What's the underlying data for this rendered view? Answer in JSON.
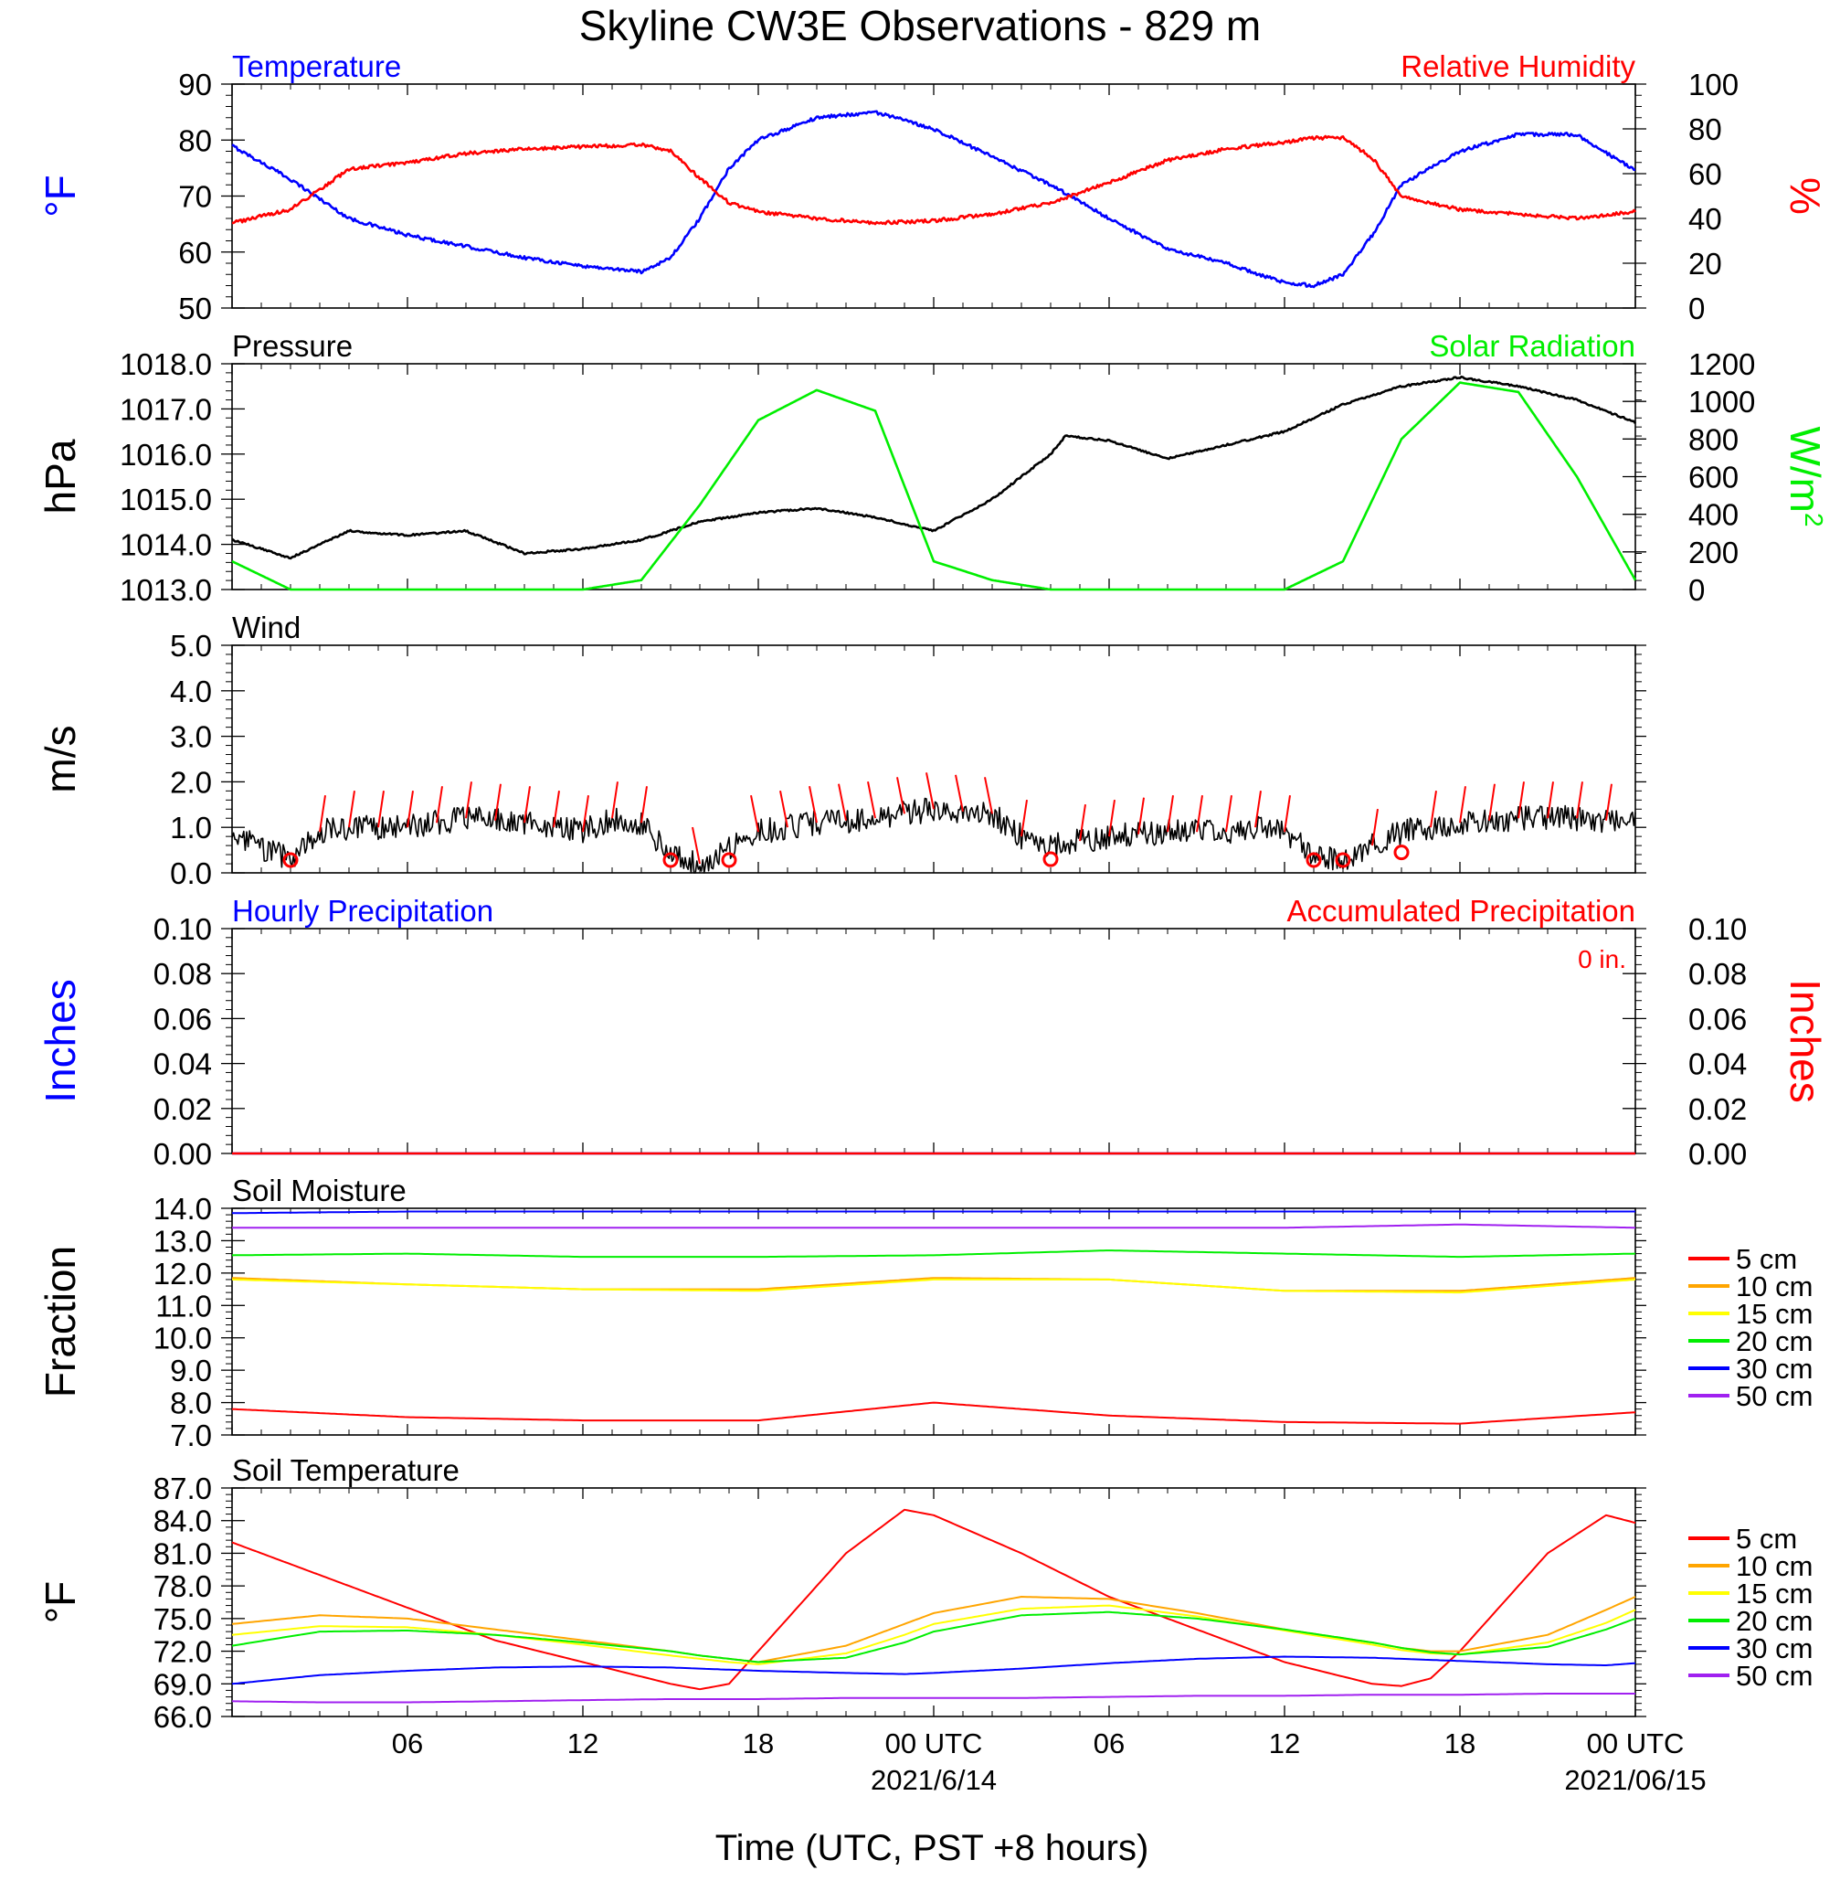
{
  "title": "Skyline CW3E Observations - 829 m",
  "xlabel": "Time (UTC, PST +8 hours)",
  "x_ticks": [
    "06",
    "12",
    "18",
    "00 UTC",
    "06",
    "12",
    "18",
    "00 UTC"
  ],
  "x_dates": [
    "2021/6/14",
    "2021/06/15"
  ],
  "colors": {
    "blue": "#0000ff",
    "red": "#ff0000",
    "green": "#00ee00",
    "black": "#000000",
    "orange": "#ffa500",
    "yellow": "#ffff00",
    "purple": "#a020f0"
  },
  "chart_data": [
    {
      "type": "line",
      "panel": "temperature_rh",
      "left_label": "Temperature",
      "right_label": "Relative Humidity",
      "ylabel_left": "°F",
      "ylabel_right": "%",
      "ylim_left": [
        50,
        90
      ],
      "ylim_right": [
        0,
        100
      ],
      "y_ticks_left": [
        "90",
        "80",
        "70",
        "60",
        "50"
      ],
      "y_ticks_right": [
        "100",
        "80",
        "60",
        "40",
        "20",
        "0"
      ],
      "x_hours": [
        0,
        2,
        4,
        6,
        8,
        10,
        12,
        14,
        15,
        16,
        17,
        18,
        20,
        22,
        24,
        26,
        28,
        30,
        32,
        34,
        36,
        37,
        38,
        39,
        40,
        42,
        44,
        46,
        48
      ],
      "series": [
        {
          "name": "Temperature",
          "color": "blue",
          "axis": "left",
          "values": [
            79,
            73,
            66,
            63,
            61,
            59,
            57.5,
            56.5,
            59,
            66,
            75,
            80,
            84,
            85,
            82,
            77,
            72,
            66,
            60.5,
            58,
            54.5,
            54,
            56,
            63,
            72,
            78,
            81,
            81,
            74.5
          ]
        },
        {
          "name": "Relative Humidity",
          "color": "red",
          "axis": "right",
          "values": [
            38,
            44,
            62,
            65,
            69,
            71,
            72,
            73,
            70,
            58,
            47,
            43,
            40,
            38,
            39,
            42,
            47,
            56,
            66,
            71,
            74,
            76,
            76,
            67,
            50,
            44,
            42,
            40,
            43
          ]
        }
      ]
    },
    {
      "type": "line",
      "panel": "pressure_solar",
      "left_label": "Pressure",
      "right_label": "Solar Radiation",
      "ylabel_left": "hPa",
      "ylabel_right": "W/m",
      "ylabel_right_sup": "2",
      "ylim_left": [
        1013,
        1018
      ],
      "ylim_right": [
        0,
        1200
      ],
      "y_ticks_left": [
        "1018.0",
        "1017.0",
        "1016.0",
        "1015.0",
        "1014.0",
        "1013.0"
      ],
      "y_ticks_right": [
        "1200",
        "1000",
        "800",
        "600",
        "400",
        "200",
        "0"
      ],
      "x_hours": [
        0,
        2,
        4,
        6,
        8,
        10,
        12,
        14,
        16,
        18,
        20,
        22,
        24,
        26,
        28,
        28.5,
        30,
        32,
        34,
        36,
        38,
        40,
        42,
        44,
        46,
        48
      ],
      "series": [
        {
          "name": "Pressure",
          "color": "black",
          "axis": "left",
          "values": [
            1014.1,
            1013.7,
            1014.3,
            1014.2,
            1014.3,
            1013.8,
            1013.9,
            1014.1,
            1014.5,
            1014.7,
            1014.8,
            1014.6,
            1014.3,
            1015.0,
            1016.0,
            1016.4,
            1016.3,
            1015.9,
            1016.2,
            1016.5,
            1017.1,
            1017.5,
            1017.7,
            1017.5,
            1017.2,
            1016.7
          ]
        },
        {
          "name": "Solar Radiation",
          "color": "green",
          "axis": "right",
          "values": [
            150,
            0,
            0,
            0,
            0,
            0,
            0,
            50,
            450,
            900,
            1060,
            950,
            150,
            50,
            0,
            0,
            0,
            0,
            0,
            0,
            150,
            800,
            1100,
            1050,
            600,
            50
          ]
        }
      ]
    },
    {
      "type": "line",
      "panel": "wind",
      "left_label": "Wind",
      "ylabel_left": "m/s",
      "ylim_left": [
        0,
        5
      ],
      "y_ticks_left": [
        "5.0",
        "4.0",
        "3.0",
        "2.0",
        "1.0",
        "0.0"
      ],
      "x_hours": [
        0,
        2,
        3,
        4,
        6,
        8,
        10,
        12,
        13,
        14,
        15,
        16,
        18,
        20,
        22,
        24,
        26,
        27,
        28,
        30,
        32,
        34,
        35,
        36,
        37,
        38,
        40,
        42,
        44,
        46,
        48
      ],
      "series": [
        {
          "name": "Wind speed",
          "color": "black",
          "axis": "left",
          "values": [
            0.8,
            0.3,
            0.9,
            1.0,
            1.0,
            1.2,
            1.1,
            0.9,
            1.2,
            1.1,
            0.4,
            0.2,
            0.9,
            1.1,
            1.2,
            1.4,
            1.3,
            0.8,
            0.6,
            0.8,
            0.9,
            0.9,
            1.0,
            0.9,
            0.4,
            0.3,
            0.9,
            1.1,
            1.2,
            1.2,
            1.1
          ]
        }
      ],
      "calm_hours": [
        2,
        15,
        17,
        28,
        37,
        38,
        40
      ]
    },
    {
      "type": "line",
      "panel": "precipitation",
      "left_label": "Hourly Precipitation",
      "right_label": "Accumulated Precipitation",
      "annotation": "0 in.",
      "ylabel_left": "Inches",
      "ylabel_right": "Inches",
      "ylim_left": [
        0,
        0.1
      ],
      "ylim_right": [
        0,
        0.1
      ],
      "y_ticks_left": [
        "0.10",
        "0.08",
        "0.06",
        "0.04",
        "0.02",
        "0.00"
      ],
      "y_ticks_right": [
        "0.10",
        "0.08",
        "0.06",
        "0.04",
        "0.02",
        "0.00"
      ],
      "x_hours": [
        0,
        48
      ],
      "series": [
        {
          "name": "Hourly Precipitation",
          "color": "blue",
          "axis": "left",
          "values": [
            0,
            0
          ]
        },
        {
          "name": "Accumulated Precipitation",
          "color": "red",
          "axis": "right",
          "values": [
            0,
            0
          ]
        }
      ]
    },
    {
      "type": "line",
      "panel": "soil_moisture",
      "left_label": "Soil Moisture",
      "ylabel_left": "Fraction",
      "ylim_left": [
        7,
        14
      ],
      "y_ticks_left": [
        "14.0",
        "13.0",
        "12.0",
        "11.0",
        "10.0",
        "9.0",
        "8.0",
        "7.0"
      ],
      "x_hours": [
        0,
        6,
        12,
        18,
        24,
        30,
        36,
        42,
        48
      ],
      "series": [
        {
          "name": "5 cm",
          "color": "red",
          "values": [
            7.8,
            7.55,
            7.45,
            7.45,
            8.0,
            7.6,
            7.4,
            7.35,
            7.7
          ]
        },
        {
          "name": "10 cm",
          "color": "orange",
          "values": [
            11.85,
            11.65,
            11.5,
            11.5,
            11.85,
            11.8,
            11.45,
            11.45,
            11.85
          ]
        },
        {
          "name": "15 cm",
          "color": "yellow",
          "values": [
            11.8,
            11.65,
            11.5,
            11.45,
            11.8,
            11.8,
            11.45,
            11.4,
            11.8
          ]
        },
        {
          "name": "20 cm",
          "color": "green",
          "values": [
            12.55,
            12.6,
            12.5,
            12.5,
            12.55,
            12.7,
            12.6,
            12.5,
            12.6
          ]
        },
        {
          "name": "30 cm",
          "color": "blue",
          "values": [
            13.85,
            13.9,
            13.9,
            13.9,
            13.9,
            13.9,
            13.9,
            13.9,
            13.9
          ]
        },
        {
          "name": "50 cm",
          "color": "purple",
          "values": [
            13.4,
            13.4,
            13.4,
            13.4,
            13.4,
            13.4,
            13.4,
            13.5,
            13.4
          ]
        }
      ]
    },
    {
      "type": "line",
      "panel": "soil_temperature",
      "left_label": "Soil Temperature",
      "ylabel_left": "°F",
      "ylim_left": [
        66,
        87
      ],
      "y_ticks_left": [
        "87.0",
        "84.0",
        "81.0",
        "78.0",
        "75.0",
        "72.0",
        "69.0",
        "66.0"
      ],
      "x_hours": [
        0,
        3,
        6,
        9,
        12,
        15,
        16,
        17,
        18,
        21,
        23,
        24,
        27,
        30,
        33,
        36,
        39,
        40,
        41,
        42,
        45,
        47,
        48
      ],
      "series": [
        {
          "name": "5 cm",
          "color": "red",
          "values": [
            82,
            79,
            76,
            73,
            71,
            69,
            68.5,
            69,
            72,
            81,
            85,
            84.5,
            81,
            77,
            74,
            71,
            69,
            68.8,
            69.5,
            72,
            81,
            84.5,
            83.8
          ]
        },
        {
          "name": "10 cm",
          "color": "orange",
          "values": [
            74.5,
            75.3,
            75,
            74,
            73,
            72,
            71.6,
            71.3,
            71,
            72.5,
            74.5,
            75.5,
            77,
            76.8,
            75.5,
            74,
            72.8,
            72.3,
            72,
            72,
            73.5,
            75.8,
            77
          ]
        },
        {
          "name": "15 cm",
          "color": "yellow",
          "values": [
            73.5,
            74.3,
            74.2,
            73.5,
            72.6,
            71.6,
            71.3,
            71,
            70.8,
            71.8,
            73.5,
            74.5,
            75.9,
            76.2,
            75.2,
            73.9,
            72.6,
            72.1,
            71.8,
            71.7,
            72.8,
            74.6,
            75.8
          ]
        },
        {
          "name": "20 cm",
          "color": "green",
          "values": [
            72.5,
            73.8,
            73.9,
            73.5,
            72.8,
            72,
            71.6,
            71.3,
            71,
            71.4,
            72.8,
            73.8,
            75.3,
            75.6,
            75,
            74,
            72.8,
            72.3,
            71.9,
            71.7,
            72.4,
            74,
            75
          ]
        },
        {
          "name": "30 cm",
          "color": "blue",
          "values": [
            69,
            69.8,
            70.2,
            70.5,
            70.6,
            70.5,
            70.4,
            70.3,
            70.2,
            70,
            69.9,
            70,
            70.4,
            70.9,
            71.3,
            71.5,
            71.4,
            71.3,
            71.2,
            71.1,
            70.8,
            70.7,
            70.9
          ]
        },
        {
          "name": "50 cm",
          "color": "purple",
          "values": [
            67.4,
            67.3,
            67.3,
            67.4,
            67.5,
            67.6,
            67.6,
            67.6,
            67.6,
            67.7,
            67.7,
            67.7,
            67.7,
            67.8,
            67.9,
            67.9,
            68,
            68,
            68,
            68,
            68.1,
            68.1,
            68.1
          ]
        }
      ]
    }
  ]
}
